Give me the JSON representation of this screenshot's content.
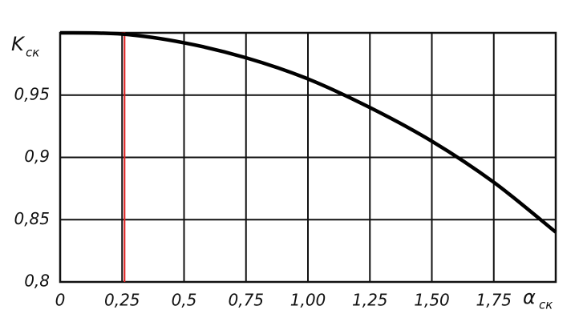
{
  "chart_data": {
    "type": "line",
    "ylabel": {
      "main": "K",
      "sub": "ск"
    },
    "xlabel": {
      "main": "α",
      "sub": "ск"
    },
    "x": [
      0,
      0.25,
      0.5,
      0.75,
      1.0,
      1.25,
      1.5,
      1.75,
      2.0
    ],
    "values": [
      1.0,
      0.999,
      0.992,
      0.98,
      0.963,
      0.94,
      0.913,
      0.88,
      0.84
    ],
    "color": "#000000",
    "xlim": [
      0,
      2.0
    ],
    "ylim": [
      0.8,
      1.0
    ],
    "xticks": [
      0,
      {
        "value": 0.25,
        "label": "0,25"
      },
      {
        "value": 0.5,
        "label": "0,5"
      },
      {
        "value": 0.75,
        "label": "0,75"
      },
      {
        "value": 1.0,
        "label": "1,00"
      },
      {
        "value": 1.25,
        "label": "1,25"
      },
      {
        "value": 1.5,
        "label": "1,50"
      },
      {
        "value": 1.75,
        "label": "1,75"
      }
    ],
    "yticks": [
      {
        "value": 0.8,
        "label": "0,8"
      },
      {
        "value": 0.85,
        "label": "0,85"
      },
      {
        "value": 0.9,
        "label": "0,9"
      },
      {
        "value": 0.95,
        "label": "0,95"
      }
    ],
    "grid": true,
    "marker": {
      "x": 0.26,
      "y": 1.0,
      "color": "#e02020"
    }
  }
}
